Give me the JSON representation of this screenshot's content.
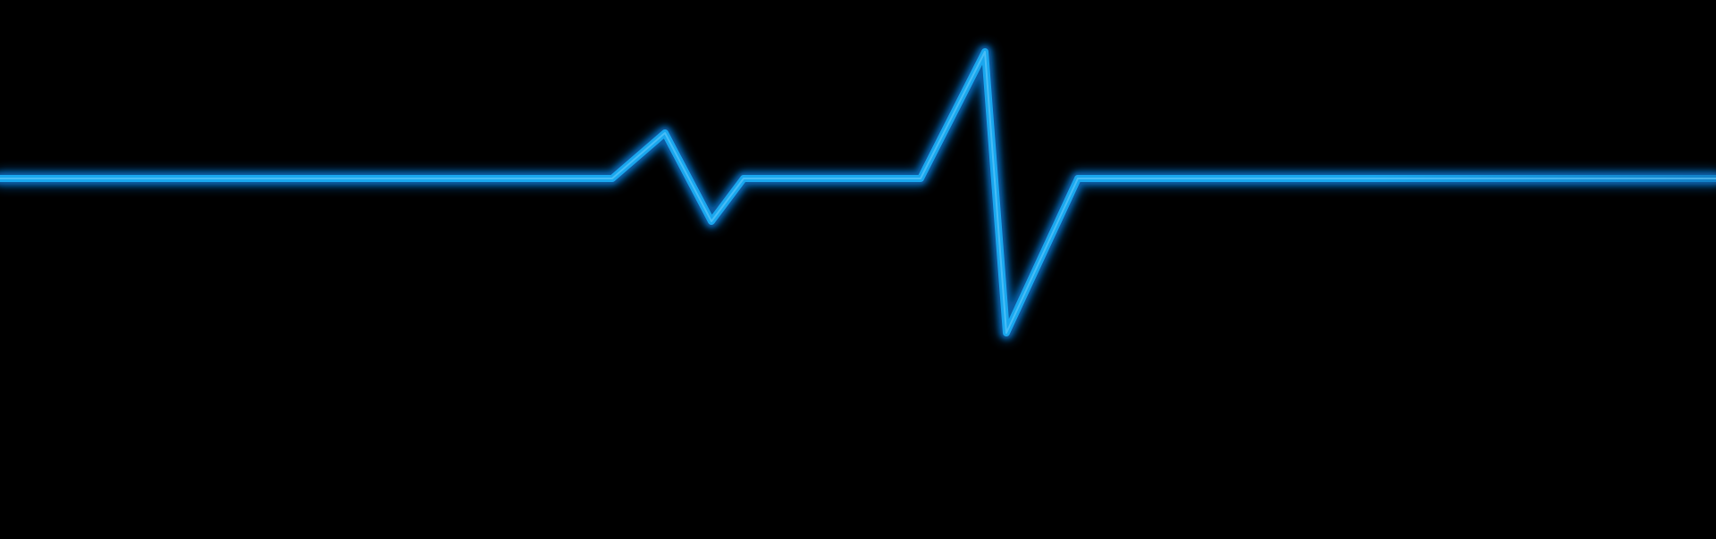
{
  "scene": {
    "subject": "heartbeat-line",
    "background_color": "#000000",
    "line_color": "#1aa7ee",
    "glow_color": "#0a6fc4"
  }
}
